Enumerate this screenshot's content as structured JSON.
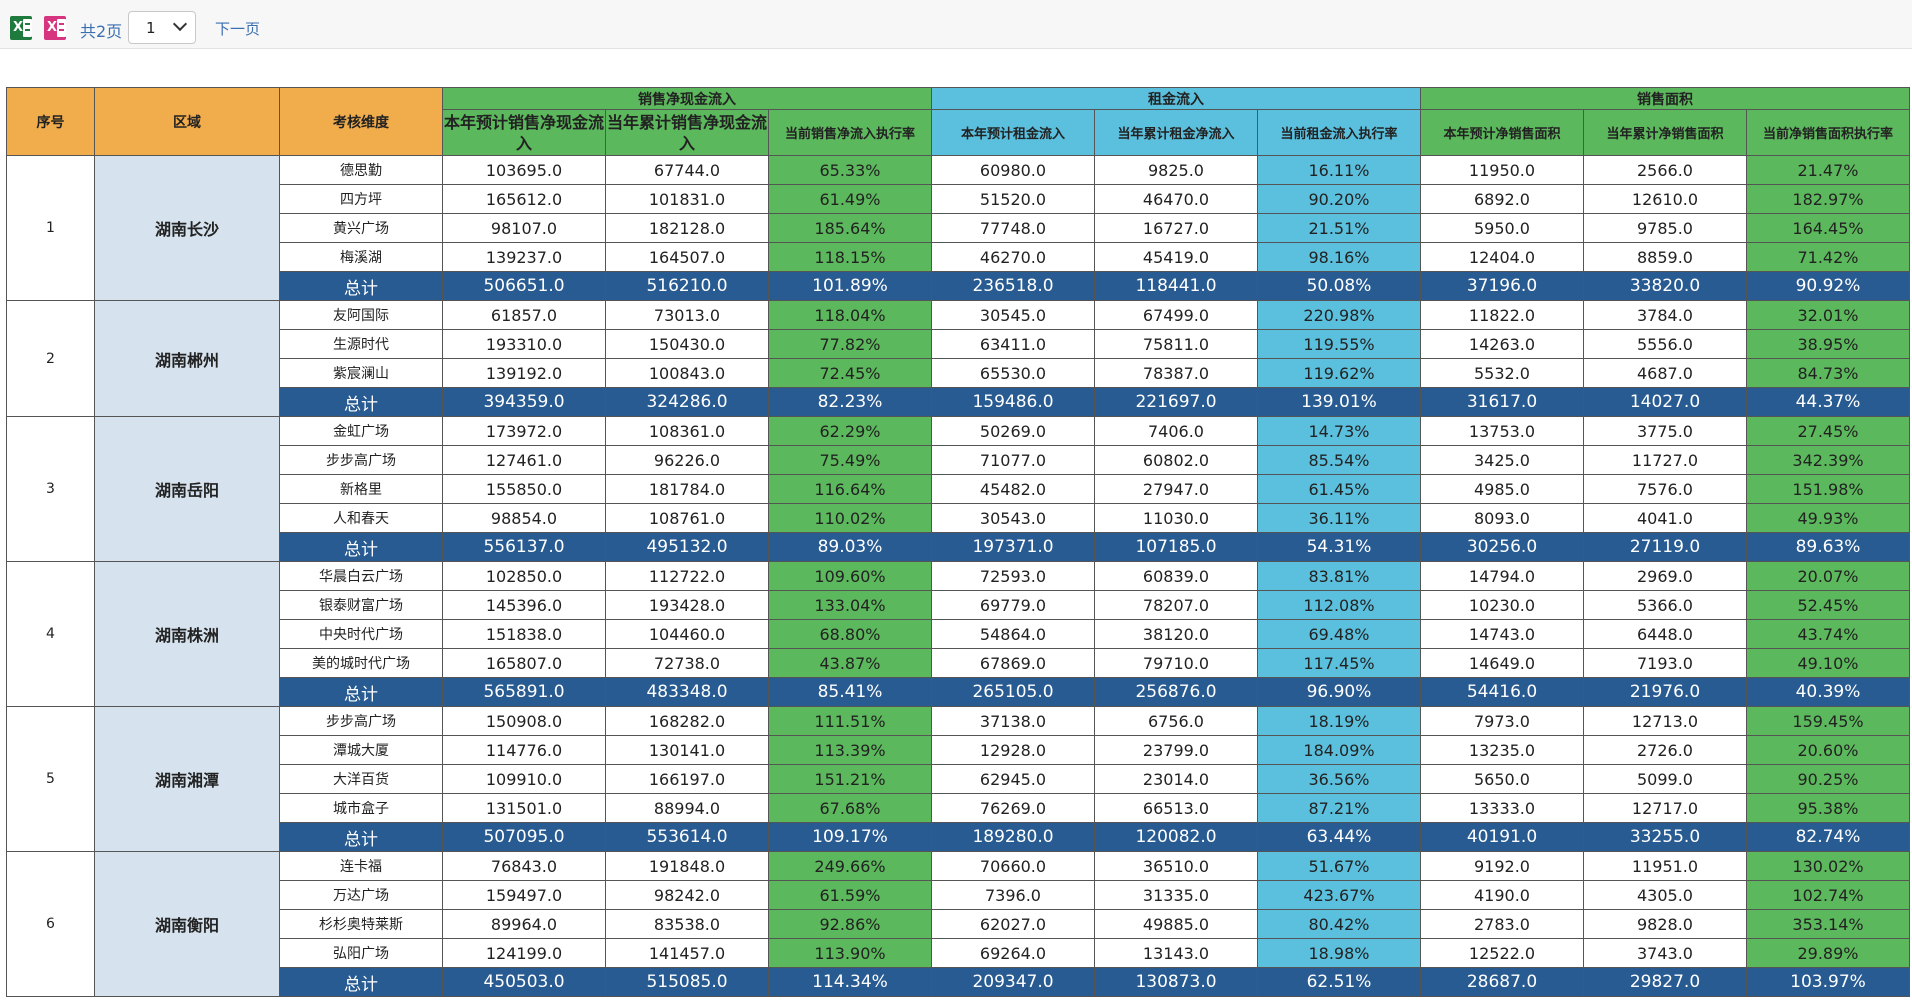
{
  "toolbar": {
    "page_count": "共2页",
    "page_select_value": "1",
    "next_page": "下一页"
  },
  "colors": {
    "header_orange": "#f1ac4c",
    "header_green": "#5cb85c",
    "header_blue": "#5bc0de",
    "region_bg": "#d6e3ee",
    "total_row": "#285b91"
  },
  "table": {
    "headers": {
      "seq": "序号",
      "region": "区域",
      "dimension": "考核维度",
      "group_sales": "销售净现金流入",
      "group_rent": "租金流入",
      "group_area": "销售面积",
      "cols": [
        "本年预计销售净现金流入",
        "当年累计销售净现金流入",
        "当前销售净流入执行率",
        "本年预计租金流入",
        "当年累计租金净流入",
        "当前租金流入执行率",
        "本年预计净销售面积",
        "当年累计净销售面积",
        "当前净销售面积执行率"
      ]
    },
    "groups": [
      {
        "seq": "1",
        "region": "湖南长沙",
        "rows": [
          [
            "德思勤",
            "103695.0",
            "67744.0",
            "65.33%",
            "60980.0",
            "9825.0",
            "16.11%",
            "11950.0",
            "2566.0",
            "21.47%"
          ],
          [
            "四方坪",
            "165612.0",
            "101831.0",
            "61.49%",
            "51520.0",
            "46470.0",
            "90.20%",
            "6892.0",
            "12610.0",
            "182.97%"
          ],
          [
            "黄兴广场",
            "98107.0",
            "182128.0",
            "185.64%",
            "77748.0",
            "16727.0",
            "21.51%",
            "5950.0",
            "9785.0",
            "164.45%"
          ],
          [
            "梅溪湖",
            "139237.0",
            "164507.0",
            "118.15%",
            "46270.0",
            "45419.0",
            "98.16%",
            "12404.0",
            "8859.0",
            "71.42%"
          ]
        ],
        "total": [
          "总计",
          "506651.0",
          "516210.0",
          "101.89%",
          "236518.0",
          "118441.0",
          "50.08%",
          "37196.0",
          "33820.0",
          "90.92%"
        ]
      },
      {
        "seq": "2",
        "region": "湖南郴州",
        "rows": [
          [
            "友阿国际",
            "61857.0",
            "73013.0",
            "118.04%",
            "30545.0",
            "67499.0",
            "220.98%",
            "11822.0",
            "3784.0",
            "32.01%"
          ],
          [
            "生源时代",
            "193310.0",
            "150430.0",
            "77.82%",
            "63411.0",
            "75811.0",
            "119.55%",
            "14263.0",
            "5556.0",
            "38.95%"
          ],
          [
            "紫宸澜山",
            "139192.0",
            "100843.0",
            "72.45%",
            "65530.0",
            "78387.0",
            "119.62%",
            "5532.0",
            "4687.0",
            "84.73%"
          ]
        ],
        "total": [
          "总计",
          "394359.0",
          "324286.0",
          "82.23%",
          "159486.0",
          "221697.0",
          "139.01%",
          "31617.0",
          "14027.0",
          "44.37%"
        ]
      },
      {
        "seq": "3",
        "region": "湖南岳阳",
        "rows": [
          [
            "金虹广场",
            "173972.0",
            "108361.0",
            "62.29%",
            "50269.0",
            "7406.0",
            "14.73%",
            "13753.0",
            "3775.0",
            "27.45%"
          ],
          [
            "步步高广场",
            "127461.0",
            "96226.0",
            "75.49%",
            "71077.0",
            "60802.0",
            "85.54%",
            "3425.0",
            "11727.0",
            "342.39%"
          ],
          [
            "新格里",
            "155850.0",
            "181784.0",
            "116.64%",
            "45482.0",
            "27947.0",
            "61.45%",
            "4985.0",
            "7576.0",
            "151.98%"
          ],
          [
            "人和春天",
            "98854.0",
            "108761.0",
            "110.02%",
            "30543.0",
            "11030.0",
            "36.11%",
            "8093.0",
            "4041.0",
            "49.93%"
          ]
        ],
        "total": [
          "总计",
          "556137.0",
          "495132.0",
          "89.03%",
          "197371.0",
          "107185.0",
          "54.31%",
          "30256.0",
          "27119.0",
          "89.63%"
        ]
      },
      {
        "seq": "4",
        "region": "湖南株洲",
        "rows": [
          [
            "华晨白云广场",
            "102850.0",
            "112722.0",
            "109.60%",
            "72593.0",
            "60839.0",
            "83.81%",
            "14794.0",
            "2969.0",
            "20.07%"
          ],
          [
            "银泰财富广场",
            "145396.0",
            "193428.0",
            "133.04%",
            "69779.0",
            "78207.0",
            "112.08%",
            "10230.0",
            "5366.0",
            "52.45%"
          ],
          [
            "中央时代广场",
            "151838.0",
            "104460.0",
            "68.80%",
            "54864.0",
            "38120.0",
            "69.48%",
            "14743.0",
            "6448.0",
            "43.74%"
          ],
          [
            "美的城时代广场",
            "165807.0",
            "72738.0",
            "43.87%",
            "67869.0",
            "79710.0",
            "117.45%",
            "14649.0",
            "7193.0",
            "49.10%"
          ]
        ],
        "total": [
          "总计",
          "565891.0",
          "483348.0",
          "85.41%",
          "265105.0",
          "256876.0",
          "96.90%",
          "54416.0",
          "21976.0",
          "40.39%"
        ]
      },
      {
        "seq": "5",
        "region": "湖南湘潭",
        "rows": [
          [
            "步步高广场",
            "150908.0",
            "168282.0",
            "111.51%",
            "37138.0",
            "6756.0",
            "18.19%",
            "7973.0",
            "12713.0",
            "159.45%"
          ],
          [
            "潭城大厦",
            "114776.0",
            "130141.0",
            "113.39%",
            "12928.0",
            "23799.0",
            "184.09%",
            "13235.0",
            "2726.0",
            "20.60%"
          ],
          [
            "大洋百货",
            "109910.0",
            "166197.0",
            "151.21%",
            "62945.0",
            "23014.0",
            "36.56%",
            "5650.0",
            "5099.0",
            "90.25%"
          ],
          [
            "城市盒子",
            "131501.0",
            "88994.0",
            "67.68%",
            "76269.0",
            "66513.0",
            "87.21%",
            "13333.0",
            "12717.0",
            "95.38%"
          ]
        ],
        "total": [
          "总计",
          "507095.0",
          "553614.0",
          "109.17%",
          "189280.0",
          "120082.0",
          "63.44%",
          "40191.0",
          "33255.0",
          "82.74%"
        ]
      },
      {
        "seq": "6",
        "region": "湖南衡阳",
        "rows": [
          [
            "连卡福",
            "76843.0",
            "191848.0",
            "249.66%",
            "70660.0",
            "36510.0",
            "51.67%",
            "9192.0",
            "11951.0",
            "130.02%"
          ],
          [
            "万达广场",
            "159497.0",
            "98242.0",
            "61.59%",
            "7396.0",
            "31335.0",
            "423.67%",
            "4190.0",
            "4305.0",
            "102.74%"
          ],
          [
            "杉杉奥特莱斯",
            "89964.0",
            "83538.0",
            "92.86%",
            "62027.0",
            "49885.0",
            "80.42%",
            "2783.0",
            "9828.0",
            "353.14%"
          ],
          [
            "弘阳广场",
            "124199.0",
            "141457.0",
            "113.90%",
            "69264.0",
            "13143.0",
            "18.98%",
            "12522.0",
            "3743.0",
            "29.89%"
          ]
        ],
        "total": [
          "总计",
          "450503.0",
          "515085.0",
          "114.34%",
          "209347.0",
          "130873.0",
          "62.51%",
          "28687.0",
          "29827.0",
          "103.97%"
        ]
      }
    ]
  }
}
